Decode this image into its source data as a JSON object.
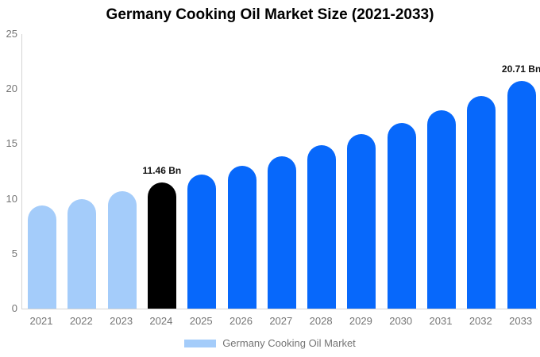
{
  "title": "Germany Cooking Oil Market Size (2021-2033)",
  "legend": {
    "label": "Germany Cooking Oil Market",
    "swatch_color": "#A4CCFA"
  },
  "colors": {
    "historical_bar": "#A4CCFA",
    "base_year_bar": "#000000",
    "forecast_bar": "#0768FB",
    "axis_line": "#D3D3D3",
    "tick_text": "#757575",
    "annotation_text": "#111111",
    "background": "#FFFFFF"
  },
  "chart_data": {
    "type": "bar",
    "title": "Germany Cooking Oil Market Size (2021-2033)",
    "categories": [
      "2021",
      "2022",
      "2023",
      "2024",
      "2025",
      "2026",
      "2027",
      "2028",
      "2029",
      "2030",
      "2031",
      "2032",
      "2033"
    ],
    "series": [
      {
        "name": "Germany Cooking Oil Market",
        "values": [
          9.4,
          10.0,
          10.7,
          11.46,
          12.2,
          13.0,
          13.9,
          14.9,
          15.9,
          16.9,
          18.1,
          19.4,
          20.71
        ]
      }
    ],
    "unit": "Bn",
    "xlabel": "",
    "ylabel": "",
    "ylim": [
      0,
      25
    ],
    "yticks": [
      0,
      5,
      10,
      15,
      20,
      25
    ],
    "grid": false,
    "legend_position": "bottom",
    "bar_colors": [
      "#A4CCFA",
      "#A4CCFA",
      "#A4CCFA",
      "#000000",
      "#0768FB",
      "#0768FB",
      "#0768FB",
      "#0768FB",
      "#0768FB",
      "#0768FB",
      "#0768FB",
      "#0768FB",
      "#0768FB"
    ],
    "annotations": [
      {
        "category": "2024",
        "text": "11.46 Bn"
      },
      {
        "category": "2033",
        "text": "20.71 Bn"
      }
    ]
  }
}
